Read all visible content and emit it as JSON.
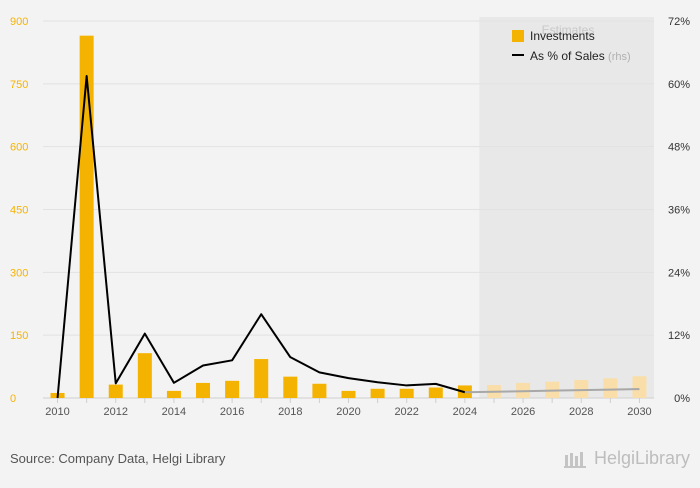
{
  "chart_data": {
    "type": "bar",
    "x": [
      2010,
      2011,
      2012,
      2013,
      2014,
      2015,
      2016,
      2017,
      2018,
      2019,
      2020,
      2021,
      2022,
      2023,
      2024,
      2025,
      2026,
      2027,
      2028,
      2029,
      2030
    ],
    "x_tick_labels": [
      "2010",
      "2012",
      "2014",
      "2016",
      "2018",
      "2020",
      "2022",
      "2024",
      "2026",
      "2028",
      "2030"
    ],
    "series": [
      {
        "name": "Investments",
        "axis": "left",
        "type": "bar",
        "color": "#f5b301",
        "estimate_color": "#f9deaa",
        "values": [
          12,
          865,
          32,
          107,
          17,
          36,
          41,
          93,
          51,
          34,
          17,
          22,
          22,
          25,
          30,
          31,
          36,
          39,
          43,
          47,
          52
        ]
      },
      {
        "name": "As % of Sales",
        "name_suffix": "(rhs)",
        "axis": "right",
        "type": "line",
        "color": "#000000",
        "estimate_color": "#a8a8a8",
        "values": [
          0.0,
          61.5,
          2.8,
          12.3,
          2.9,
          6.2,
          7.2,
          16.0,
          7.8,
          4.9,
          3.8,
          3.0,
          2.4,
          2.7,
          1.1,
          1.2,
          1.3,
          1.4,
          1.5,
          1.6,
          1.7
        ]
      }
    ],
    "left_axis": {
      "ticks": [
        "0",
        "150",
        "300",
        "450",
        "600",
        "750",
        "900"
      ],
      "ylim": [
        0,
        900
      ],
      "color": "#f5b301"
    },
    "right_axis": {
      "ticks": [
        "0%",
        "12%",
        "24%",
        "36%",
        "48%",
        "60%",
        "72%"
      ],
      "ylim": [
        0,
        72
      ]
    },
    "estimates": {
      "label": "Estimates",
      "from_year": 2025
    },
    "legend_position": "top-right",
    "grid": true
  },
  "footer": {
    "source": "Source: Company Data, Helgi Library",
    "brand": "HelgiLibrary"
  }
}
